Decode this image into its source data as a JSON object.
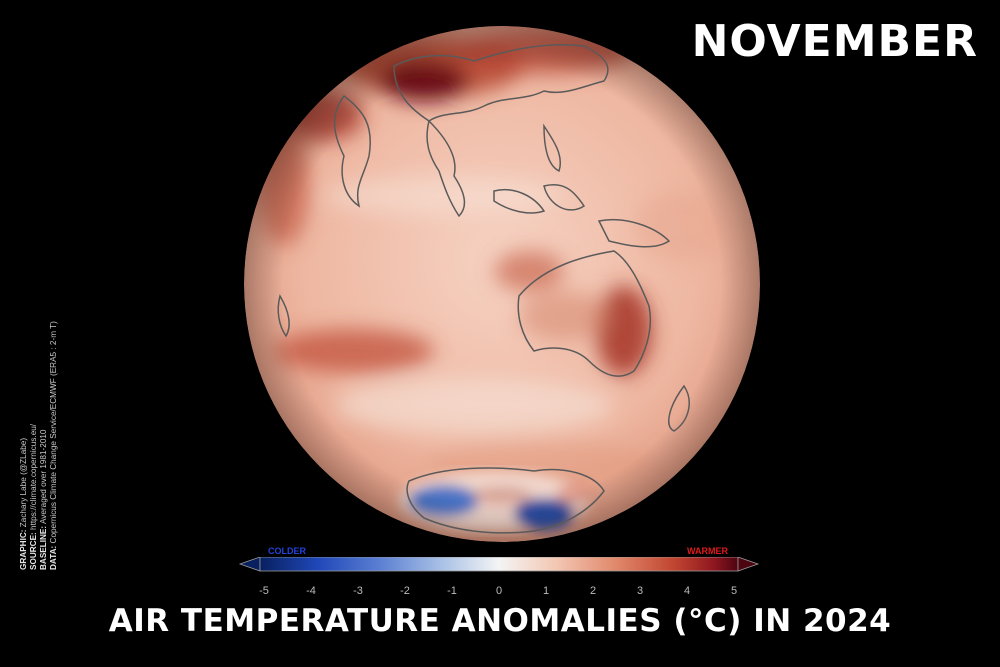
{
  "month": "NOVEMBER",
  "title": "AIR TEMPERATURE ANOMALIES (°C) IN 2024",
  "credits": [
    {
      "key": "GRAPHIC:",
      "value": "Zachary Labe (@ZLabe)"
    },
    {
      "key": "SOURCE:",
      "value": "https://climate.copernicus.eu/"
    },
    {
      "key": "BASELINE:",
      "value": "Averaged over 1981-2010"
    },
    {
      "key": "DATA:",
      "value": "Copernicus Climate Change Service/ECMWF (ERA5 : 2-m T)"
    }
  ],
  "colorbar": {
    "low_label": "COLDER",
    "high_label": "WARMER",
    "ticks": [
      "-5",
      "-4",
      "-3",
      "-2",
      "-1",
      "0",
      "1",
      "2",
      "3",
      "4",
      "5"
    ],
    "range": [
      -5,
      5
    ],
    "colors": [
      "#08205e",
      "#1f47b8",
      "#5b7fd3",
      "#a9c1e6",
      "#f4f4f4",
      "#f3c7b3",
      "#df8568",
      "#c0432f",
      "#8e1620",
      "#4d0510"
    ]
  },
  "map": {
    "projection": "orthographic globe",
    "visible_regions": [
      "Asia",
      "Indian Ocean",
      "Maritime Continent",
      "Australia",
      "New Zealand",
      "Antarctica",
      "Southern Ocean"
    ]
  }
}
